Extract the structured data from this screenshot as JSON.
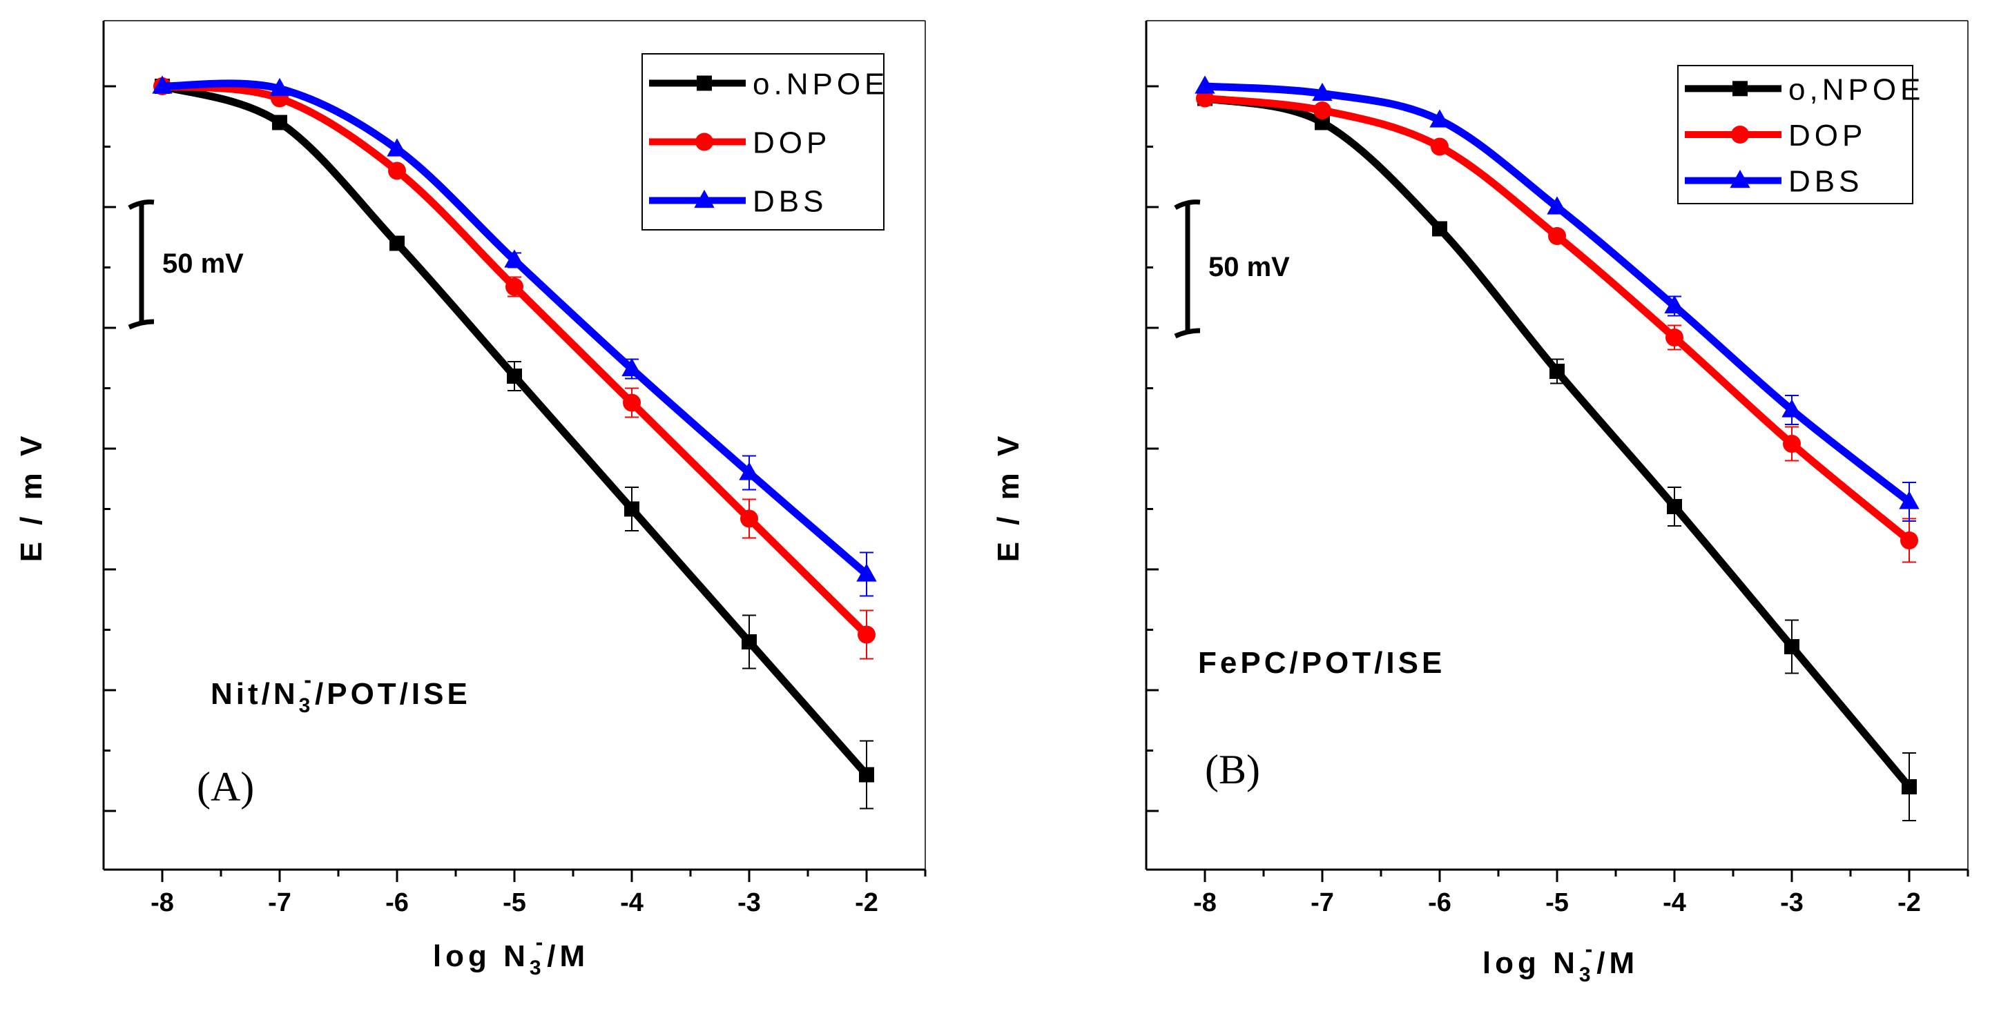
{
  "chart_data": [
    {
      "type": "line",
      "panel_label": "(A)",
      "annotation": {
        "base": "Nit/N",
        "sub": "3",
        "sup": "-",
        "rest": "/POT/ISE"
      },
      "xlabel": {
        "base": "log N",
        "sub": "3",
        "sup": "-",
        "rest": "/M"
      },
      "ylabel": "E / m V",
      "scale_bar": "50 mV",
      "xlim": [
        -8.5,
        -1.5
      ],
      "x_ticks": [
        "-8",
        "-7",
        "-6",
        "-5",
        "-4",
        "-3",
        "-2"
      ],
      "y_unit_note": "no numeric y tick labels; scale bar indicates 50 mV",
      "ylim": [
        -330,
        30
      ],
      "x": [
        -8,
        -7,
        -6,
        -5,
        -4,
        -3,
        -2
      ],
      "series": [
        {
          "name": "o.NPOE",
          "color": "#000000",
          "marker": "square",
          "values": [
            0,
            -15,
            -65,
            -120,
            -175,
            -230,
            -285
          ],
          "errors": [
            0,
            0,
            0,
            6,
            9,
            11,
            14
          ]
        },
        {
          "name": "DOP",
          "color": "#ff0000",
          "marker": "circle",
          "values": [
            0,
            -5,
            -35,
            -83,
            -131,
            -179,
            -227
          ],
          "errors": [
            0,
            0,
            0,
            4,
            6,
            8,
            10
          ]
        },
        {
          "name": "DBS",
          "color": "#0000ff",
          "marker": "triangle",
          "values": [
            0,
            -1,
            -26,
            -72,
            -117,
            -160,
            -202
          ],
          "errors": [
            0,
            0,
            0,
            3,
            4,
            7,
            9
          ]
        }
      ],
      "legend_location": "top-right"
    },
    {
      "type": "line",
      "panel_label": "(B)",
      "annotation": {
        "base": "FePC/POT/ISE",
        "sub": "",
        "sup": "",
        "rest": ""
      },
      "xlabel": {
        "base": "log N",
        "sub": "3",
        "sup": "-",
        "rest": "/M"
      },
      "ylabel": "E / m V",
      "scale_bar": "50 mV",
      "xlim": [
        -8.5,
        -1.5
      ],
      "x_ticks": [
        "-8",
        "-7",
        "-6",
        "-5",
        "-4",
        "-3",
        "-2"
      ],
      "y_unit_note": "no numeric y tick labels; scale bar indicates 50 mV",
      "ylim": [
        -330,
        30
      ],
      "x": [
        -8,
        -7,
        -6,
        -5,
        -4,
        -3,
        -2
      ],
      "series": [
        {
          "name": "o,NPOE",
          "color": "#000000",
          "marker": "square",
          "values": [
            -5,
            -15,
            -59,
            -118,
            -174,
            -232,
            -290
          ],
          "errors": [
            0,
            0,
            0,
            5,
            8,
            11,
            14
          ]
        },
        {
          "name": "DOP",
          "color": "#ff0000",
          "marker": "circle",
          "values": [
            -5,
            -10,
            -25,
            -62,
            -104,
            -148,
            -188
          ],
          "errors": [
            0,
            0,
            0,
            0,
            5,
            7,
            9
          ]
        },
        {
          "name": "DBS",
          "color": "#0000ff",
          "marker": "triangle",
          "values": [
            0,
            -3,
            -14,
            -50,
            -91,
            -134,
            -172
          ],
          "errors": [
            0,
            0,
            0,
            0,
            4,
            6,
            8
          ]
        }
      ],
      "legend_location": "top-right"
    }
  ]
}
